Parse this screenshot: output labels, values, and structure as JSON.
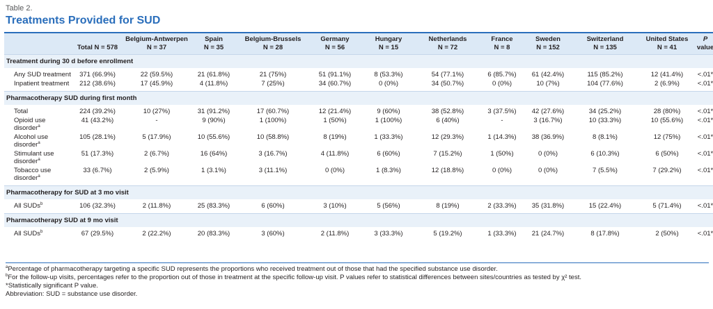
{
  "label": "Table 2.",
  "title": "Treatments Provided for SUD",
  "table": {
    "columns": [
      [
        "Total N = 578"
      ],
      [
        "Belgium-Antwerpen",
        "N = 37"
      ],
      [
        "Spain",
        "N = 35"
      ],
      [
        "Belgium-Brussels",
        "N = 28"
      ],
      [
        "Germany",
        "N = 56"
      ],
      [
        "Hungary",
        "N = 15"
      ],
      [
        "Netherlands",
        "N = 72"
      ],
      [
        "France",
        "N = 8"
      ],
      [
        "Sweden",
        "N = 152"
      ],
      [
        "Switzerland",
        "N = 135"
      ],
      [
        "United States",
        "N = 41"
      ],
      [
        "P",
        "value"
      ]
    ],
    "sections": [
      {
        "title": "Treatment during 30 d before enrollment",
        "rows": [
          {
            "label": "Any SUD treatment",
            "cells": [
              "371 (66.9%)",
              "22 (59.5%)",
              "21 (61.8%)",
              "21 (75%)",
              "51 (91.1%)",
              "8 (53.3%)",
              "54 (77.1%)",
              "6 (85.7%)",
              "61 (42.4%)",
              "115 (85.2%)",
              "12 (41.4%)",
              "<.01*"
            ]
          },
          {
            "label": "Inpatient treatment",
            "cells": [
              "212 (38.6%)",
              "17 (45.9%)",
              "4 (11.8%)",
              "7 (25%)",
              "34 (60.7%)",
              "0 (0%)",
              "34 (50.7%)",
              "0 (0%)",
              "10 (7%)",
              "104 (77.6%)",
              "2 (6.9%)",
              "<.01*"
            ]
          }
        ]
      },
      {
        "title": "Pharmacotherapy SUD during first month",
        "rows": [
          {
            "label": "Total",
            "cells": [
              "224 (39.2%)",
              "10 (27%)",
              "31 (91.2%)",
              "17 (60.7%)",
              "12 (21.4%)",
              "9 (60%)",
              "38 (52.8%)",
              "3 (37.5%)",
              "42 (27.6%)",
              "34 (25.2%)",
              "28 (80%)",
              "<.01*"
            ]
          },
          {
            "label": "Opioid use disorder",
            "sup": "a",
            "cells": [
              "41 (43.2%)",
              "-",
              "9 (90%)",
              "1 (100%)",
              "1 (50%)",
              "1 (100%)",
              "6 (40%)",
              "-",
              "3 (16.7%)",
              "10 (33.3%)",
              "10 (55.6%)",
              "<.01*"
            ]
          },
          {
            "label": "Alcohol use disorder",
            "sup": "a",
            "cells": [
              "105 (28.1%)",
              "5 (17.9%)",
              "10 (55.6%)",
              "10 (58.8%)",
              "8 (19%)",
              "1 (33.3%)",
              "12 (29.3%)",
              "1 (14.3%)",
              "38 (36.9%)",
              "8 (8.1%)",
              "12 (75%)",
              "<.01*"
            ]
          },
          {
            "label": "Stimulant use disorder",
            "sup": "a",
            "cells": [
              "51 (17.3%)",
              "2 (6.7%)",
              "16 (64%)",
              "3 (16.7%)",
              "4 (11.8%)",
              "6 (60%)",
              "7 (15.2%)",
              "1 (50%)",
              "0 (0%)",
              "6 (10.3%)",
              "6 (50%)",
              "<.01*"
            ]
          },
          {
            "label": "Tobacco use disorder",
            "sup": "a",
            "cells": [
              "33 (6.7%)",
              "2 (5.9%)",
              "1 (3.1%)",
              "3 (11.1%)",
              "0 (0%)",
              "1 (8.3%)",
              "12 (18.8%)",
              "0 (0%)",
              "0 (0%)",
              "7 (5.5%)",
              "7 (29.2%)",
              "<.01*"
            ]
          }
        ]
      },
      {
        "title": "Pharmacotherapy for SUD at 3 mo visit",
        "rows": [
          {
            "label": "All SUDs",
            "sup": "b",
            "cells": [
              "106 (32.3%)",
              "2 (11.8%)",
              "25 (83.3%)",
              "6 (60%)",
              "3 (10%)",
              "5 (56%)",
              "8 (19%)",
              "2 (33.3%)",
              "35 (31.8%)",
              "15 (22.4%)",
              "5 (71.4%)",
              "<.01*"
            ]
          }
        ]
      },
      {
        "title": "Pharmacotherapy SUD at 9 mo visit",
        "rows": [
          {
            "label": "All SUDs",
            "sup": "b",
            "cells": [
              "67 (29.5%)",
              "2 (22.2%)",
              "20 (83.3%)",
              "3 (60%)",
              "2 (11.8%)",
              "3 (33.3%)",
              "5 (19.2%)",
              "1 (33.3%)",
              "21 (24.7%)",
              "8 (17.8%)",
              "2 (50%)",
              "<.01*"
            ]
          }
        ]
      }
    ]
  },
  "footnotes": [
    {
      "sup": "a",
      "text": "Percentage of pharmacotherapy targeting a specific SUD represents the proportions who received treatment out of those that had the specified substance use disorder."
    },
    {
      "sup": "b",
      "text": "For the follow-up visits, percentages refer to the proportion out of those in treatment at the specific follow-up visit. P values refer to statistical differences between sites/countries as tested by χ² test."
    },
    {
      "text": "*Statistically significant P value."
    },
    {
      "text": "Abbreviation: SUD = substance use disorder."
    }
  ]
}
